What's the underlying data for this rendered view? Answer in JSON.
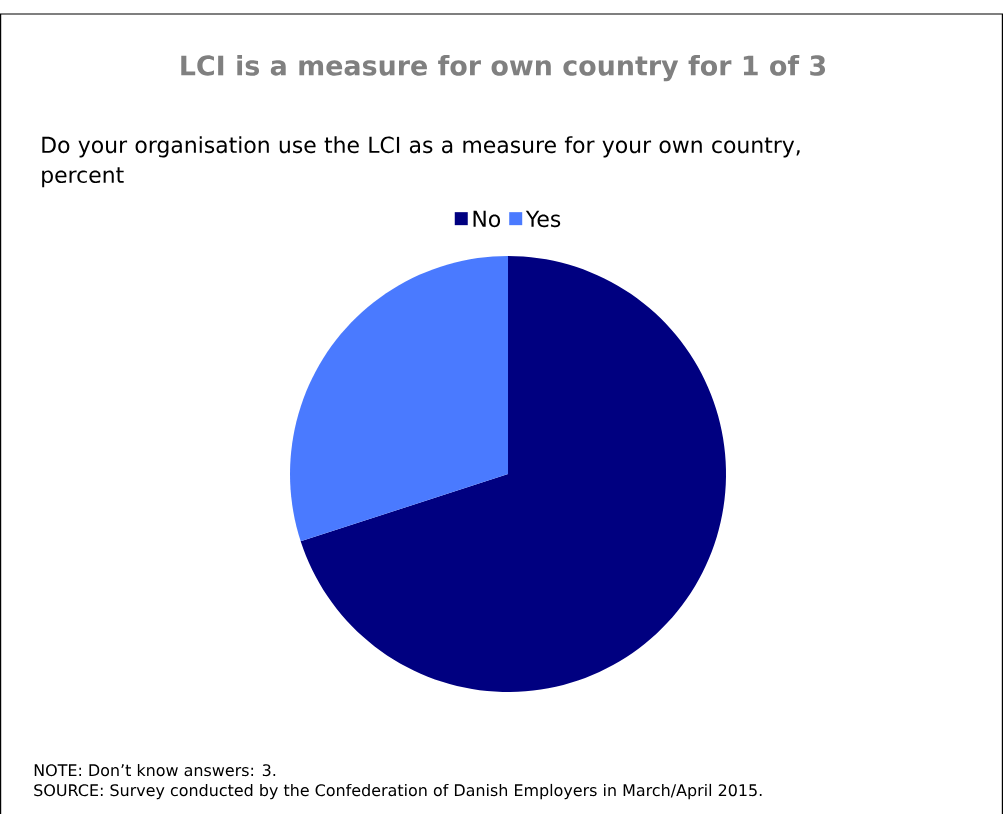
{
  "chart_data": {
    "type": "pie",
    "title": "LCI is a measure for own country for 1 of 3",
    "subtitle": "Do your organisation use the LCI as a measure for your own country, percent",
    "categories": [
      "No",
      "Yes"
    ],
    "values": [
      70,
      30
    ],
    "colors": [
      "#000080",
      "#4a7aff"
    ],
    "legend": "top",
    "annotations": [
      "NOTE:  Don’t know answers: 3.",
      "SOURCE: Survey conducted by the Confederation of Danish Employers in March/April 2015."
    ]
  }
}
